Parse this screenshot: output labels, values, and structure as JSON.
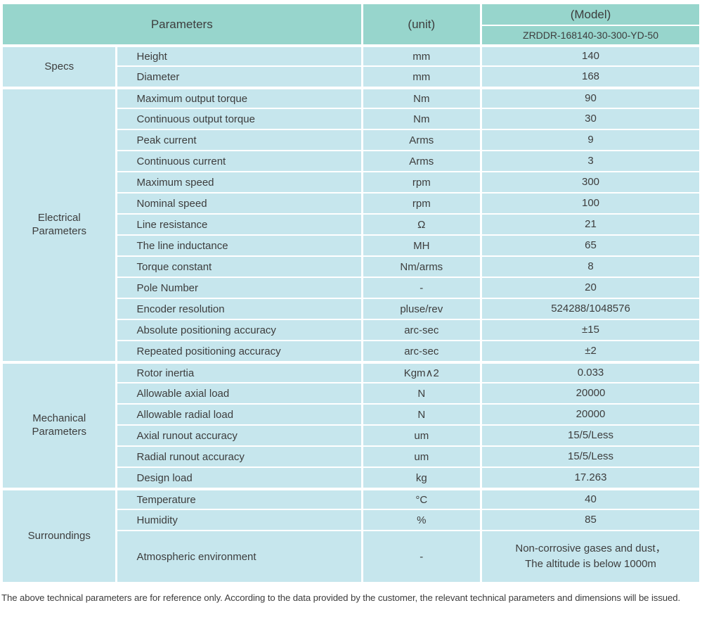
{
  "colors": {
    "header_bg": "#97d5cc",
    "cell_bg": "#c6e6ed",
    "text": "#3d3d3d"
  },
  "header": {
    "parameters_label": "Parameters",
    "unit_label": "(unit)",
    "model_label": "(Model)",
    "model_number": "ZRDDR-168140-30-300-YD-50"
  },
  "sections": [
    {
      "id": "specs",
      "label": "Specs",
      "rows": [
        {
          "param": "Height",
          "unit": "mm",
          "value": "140"
        },
        {
          "param": "Diameter",
          "unit": "mm",
          "value": "168"
        }
      ]
    },
    {
      "id": "electrical-parameters",
      "label": "Electrical Parameters",
      "rows": [
        {
          "param": "Maximum output torque",
          "unit": "Nm",
          "value": "90"
        },
        {
          "param": "Continuous output torque",
          "unit": "Nm",
          "value": "30"
        },
        {
          "param": "Peak current",
          "unit": "Arms",
          "value": "9"
        },
        {
          "param": "Continuous current",
          "unit": "Arms",
          "value": "3"
        },
        {
          "param": "Maximum speed",
          "unit": "rpm",
          "value": "300"
        },
        {
          "param": "Nominal speed",
          "unit": "rpm",
          "value": "100"
        },
        {
          "param": "Line resistance",
          "unit": "Ω",
          "value": "21"
        },
        {
          "param": "The line inductance",
          "unit": "MH",
          "value": "65"
        },
        {
          "param": "Torque constant",
          "unit": "Nm/arms",
          "value": "8"
        },
        {
          "param": "Pole Number",
          "unit": "-",
          "value": "20"
        },
        {
          "param": "Encoder resolution",
          "unit": "pluse/rev",
          "value": "524288/1048576"
        },
        {
          "param": "Absolute positioning accuracy",
          "unit": "arc-sec",
          "value": "±15"
        },
        {
          "param": "Repeated positioning accuracy",
          "unit": "arc-sec",
          "value": "±2"
        }
      ]
    },
    {
      "id": "mechanical-parameters",
      "label": "Mechanical Parameters",
      "rows": [
        {
          "param": "Rotor inertia",
          "unit": "Kgm∧2",
          "value": "0.033"
        },
        {
          "param": "Allowable axial load",
          "unit": "N",
          "value": "20000"
        },
        {
          "param": "Allowable radial load",
          "unit": "N",
          "value": "20000"
        },
        {
          "param": "Axial runout accuracy",
          "unit": "um",
          "value": "15/5/Less"
        },
        {
          "param": "Radial runout accuracy",
          "unit": "um",
          "value": "15/5/Less"
        },
        {
          "param": "Design load",
          "unit": "kg",
          "value": "17.263"
        }
      ]
    },
    {
      "id": "surroundings",
      "label": "Surroundings",
      "rows": [
        {
          "param": "Temperature",
          "unit": "°C",
          "value": "40"
        },
        {
          "param": "Humidity",
          "unit": "%",
          "value": "85"
        },
        {
          "param": "Atmospheric environment",
          "unit": "-",
          "value": "Non-corrosive gases and dust，\nThe altitude is below 1000m",
          "tall": true
        }
      ]
    }
  ],
  "footer": {
    "note": "The above technical parameters are for reference only. According to the data provided by the customer, the relevant technical parameters and dimensions will be issued."
  }
}
